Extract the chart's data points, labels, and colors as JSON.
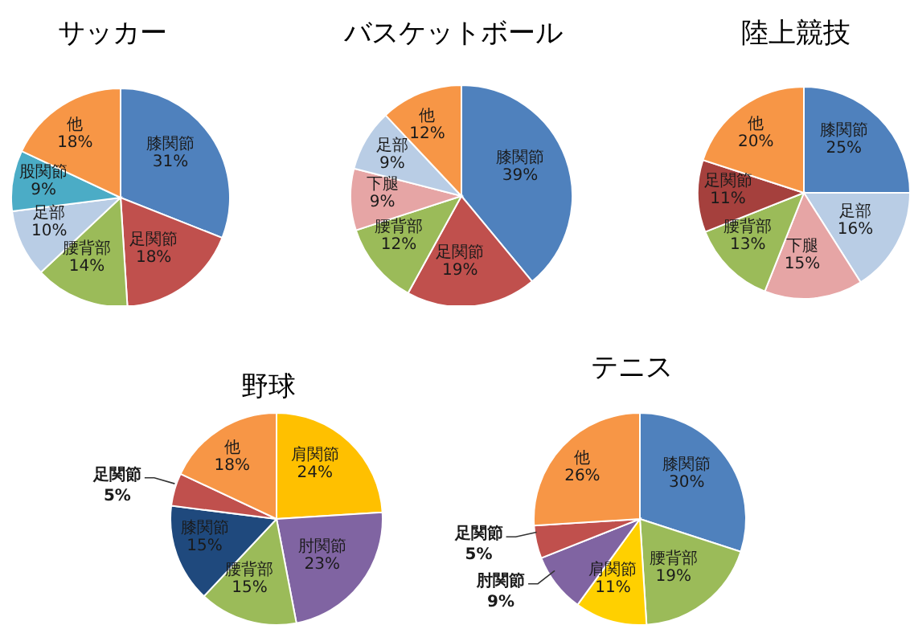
{
  "chart_data": [
    {
      "type": "pie",
      "title": "サッカー",
      "categories": [
        "膝関節",
        "足関節",
        "腰背部",
        "足部",
        "股関節",
        "他"
      ],
      "values": [
        31,
        18,
        14,
        10,
        9,
        18
      ],
      "colors": [
        "#4f81bd",
        "#c0504d",
        "#9bbb59",
        "#b9cde5",
        "#4bacc6",
        "#f79646"
      ],
      "value_labels": [
        "31%",
        "18%",
        "14%",
        "10%",
        "9%",
        "18%"
      ]
    },
    {
      "type": "pie",
      "title": "バスケットボール",
      "categories": [
        "膝関節",
        "足関節",
        "腰背部",
        "下腿",
        "足部",
        "他"
      ],
      "values": [
        39,
        19,
        12,
        9,
        9,
        12
      ],
      "colors": [
        "#4f81bd",
        "#c0504d",
        "#9bbb59",
        "#e6a5a5",
        "#b9cde5",
        "#f79646"
      ],
      "value_labels": [
        "39%",
        "19%",
        "12%",
        "9%",
        "9%",
        "12%"
      ]
    },
    {
      "type": "pie",
      "title": "陸上競技",
      "categories": [
        "膝関節",
        "足部",
        "下腿",
        "腰背部",
        "足関節",
        "他"
      ],
      "values": [
        25,
        16,
        15,
        13,
        11,
        20
      ],
      "colors": [
        "#4f81bd",
        "#b9cde5",
        "#e6a5a5",
        "#9bbb59",
        "#a5403d",
        "#f79646"
      ],
      "value_labels": [
        "25%",
        "16%",
        "15%",
        "13%",
        "11%",
        "20%"
      ]
    },
    {
      "type": "pie",
      "title": "野球",
      "categories": [
        "肩関節",
        "肘関節",
        "腰背部",
        "膝関節",
        "足関節",
        "他"
      ],
      "values": [
        24,
        23,
        15,
        15,
        5,
        18
      ],
      "colors": [
        "#ffc000",
        "#8064a2",
        "#9bbb59",
        "#1f497d",
        "#c0504d",
        "#f79646"
      ],
      "value_labels": [
        "24%",
        "23%",
        "15%",
        "15%",
        "5%",
        "18%"
      ]
    },
    {
      "type": "pie",
      "title": "テニス",
      "categories": [
        "膝関節",
        "腰背部",
        "肩関節",
        "肘関節",
        "足関節",
        "他"
      ],
      "values": [
        30,
        19,
        11,
        9,
        5,
        26
      ],
      "colors": [
        "#4f81bd",
        "#9bbb59",
        "#ffd000",
        "#8064a2",
        "#c0504d",
        "#f79646"
      ],
      "value_labels": [
        "30%",
        "19%",
        "11%",
        "9%",
        "5%",
        "26%"
      ]
    }
  ]
}
